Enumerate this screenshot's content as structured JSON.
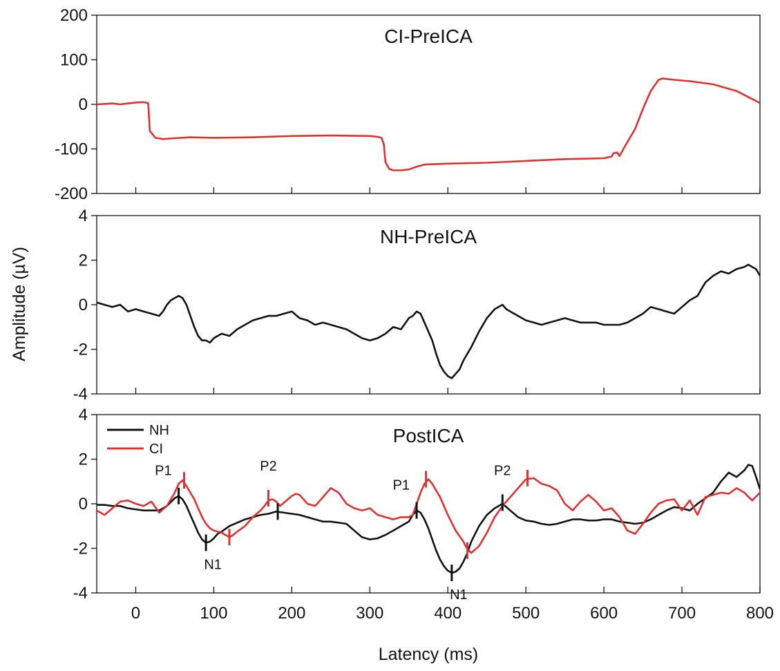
{
  "chart_data": {
    "type": "line",
    "xlabel": "Latency (ms)",
    "ylabel": "Amplitude (µV)",
    "x_ticks": [
      "0",
      "100",
      "200",
      "300",
      "400",
      "500",
      "600",
      "700",
      "800"
    ],
    "xlim": [
      -50,
      800
    ],
    "colors": {
      "NH": "#111111",
      "CI": "#e03030"
    },
    "panels": [
      {
        "title": "CI-PreICA",
        "ylim": [
          -200,
          200
        ],
        "y_ticks": [
          "200",
          "100",
          "0",
          "-100",
          "-200"
        ],
        "series": [
          {
            "color_key": "CI",
            "x": [
              -50,
              -40,
              -30,
              -20,
              -10,
              0,
              10,
              16,
              18,
              22,
              25,
              35,
              50,
              70,
              100,
              150,
              200,
              250,
              300,
              310,
              315,
              318,
              320,
              325,
              330,
              340,
              350,
              360,
              370,
              400,
              450,
              500,
              550,
              600,
              610,
              612,
              617,
              620,
              625,
              630,
              640,
              650,
              660,
              670,
              675,
              690,
              710,
              740,
              770,
              800
            ],
            "y": [
              0,
              1,
              2,
              0,
              2,
              4,
              5,
              3,
              -60,
              -68,
              -75,
              -78,
              -76,
              -74,
              -75,
              -74,
              -71,
              -70,
              -71,
              -73,
              -75,
              -90,
              -130,
              -145,
              -148,
              -148,
              -146,
              -140,
              -135,
              -133,
              -131,
              -127,
              -123,
              -121,
              -117,
              -110,
              -108,
              -116,
              -100,
              -85,
              -55,
              -10,
              30,
              55,
              58,
              55,
              52,
              45,
              30,
              3
            ]
          }
        ]
      },
      {
        "title": "NH-PreICA",
        "ylim": [
          -4,
          4
        ],
        "y_ticks": [
          "4",
          "2",
          "0",
          "-2",
          "-4"
        ],
        "series": [
          {
            "color_key": "NH",
            "x": [
              -50,
              -40,
              -30,
              -20,
              -10,
              0,
              10,
              20,
              30,
              35,
              40,
              45,
              50,
              55,
              60,
              65,
              70,
              75,
              80,
              85,
              90,
              95,
              100,
              110,
              120,
              130,
              140,
              150,
              160,
              170,
              180,
              190,
              200,
              210,
              220,
              230,
              240,
              250,
              260,
              270,
              280,
              290,
              300,
              310,
              320,
              330,
              340,
              350,
              355,
              360,
              365,
              370,
              375,
              380,
              385,
              390,
              395,
              400,
              405,
              410,
              415,
              420,
              430,
              440,
              450,
              460,
              470,
              475,
              480,
              490,
              500,
              510,
              520,
              530,
              540,
              550,
              560,
              570,
              580,
              590,
              600,
              610,
              620,
              630,
              640,
              650,
              660,
              670,
              680,
              690,
              700,
              710,
              720,
              730,
              740,
              750,
              760,
              770,
              780,
              785,
              790,
              795,
              800
            ],
            "y": [
              0.1,
              0,
              -0.1,
              0,
              -0.3,
              -0.2,
              -0.3,
              -0.4,
              -0.5,
              -0.3,
              0,
              0.2,
              0.3,
              0.4,
              0.3,
              0,
              -0.5,
              -1,
              -1.4,
              -1.6,
              -1.6,
              -1.7,
              -1.5,
              -1.3,
              -1.4,
              -1.1,
              -0.9,
              -0.7,
              -0.6,
              -0.5,
              -0.5,
              -0.4,
              -0.3,
              -0.6,
              -0.7,
              -0.9,
              -0.8,
              -0.9,
              -1,
              -1.1,
              -1.3,
              -1.5,
              -1.6,
              -1.5,
              -1.3,
              -1,
              -1.1,
              -0.6,
              -0.5,
              -0.3,
              -0.4,
              -0.8,
              -1.2,
              -1.6,
              -2.2,
              -2.7,
              -3,
              -3.2,
              -3.3,
              -3.1,
              -2.9,
              -2.5,
              -1.9,
              -1.2,
              -0.6,
              -0.2,
              0,
              -0.2,
              -0.3,
              -0.5,
              -0.7,
              -0.8,
              -0.9,
              -0.8,
              -0.7,
              -0.6,
              -0.7,
              -0.8,
              -0.8,
              -0.8,
              -0.9,
              -0.9,
              -0.9,
              -0.8,
              -0.6,
              -0.4,
              -0.1,
              -0.2,
              -0.3,
              -0.4,
              -0.1,
              0.2,
              0.4,
              1,
              1.3,
              1.5,
              1.4,
              1.6,
              1.7,
              1.8,
              1.7,
              1.6,
              1.3
            ]
          }
        ]
      },
      {
        "title": "PostICA",
        "ylim": [
          -4,
          4
        ],
        "y_ticks": [
          "4",
          "2",
          "0",
          "-2",
          "-4"
        ],
        "legend": {
          "position": "top-left",
          "entries": [
            {
              "name": "NH",
              "color_key": "NH"
            },
            {
              "name": "CI",
              "color_key": "CI"
            }
          ]
        },
        "series": [
          {
            "name": "NH",
            "color_key": "NH",
            "x": [
              -50,
              -40,
              -30,
              -20,
              -10,
              0,
              10,
              20,
              30,
              40,
              50,
              55,
              60,
              65,
              70,
              75,
              80,
              85,
              90,
              95,
              100,
              105,
              110,
              120,
              130,
              140,
              150,
              160,
              170,
              180,
              190,
              200,
              210,
              220,
              230,
              240,
              250,
              260,
              270,
              280,
              290,
              300,
              310,
              320,
              330,
              340,
              350,
              355,
              360,
              365,
              370,
              375,
              380,
              385,
              390,
              395,
              400,
              405,
              410,
              415,
              420,
              425,
              430,
              440,
              450,
              460,
              470,
              480,
              490,
              500,
              510,
              520,
              530,
              540,
              550,
              560,
              570,
              580,
              590,
              600,
              610,
              620,
              630,
              640,
              650,
              660,
              670,
              680,
              690,
              700,
              710,
              720,
              730,
              740,
              750,
              760,
              770,
              780,
              785,
              790,
              795,
              800
            ],
            "y": [
              -0.05,
              -0.05,
              -0.1,
              -0.1,
              -0.2,
              -0.25,
              -0.3,
              -0.3,
              -0.3,
              -0.1,
              0.25,
              0.35,
              0.2,
              -0.1,
              -0.5,
              -0.9,
              -1.3,
              -1.6,
              -1.75,
              -1.7,
              -1.55,
              -1.35,
              -1.25,
              -1,
              -0.85,
              -0.7,
              -0.6,
              -0.5,
              -0.45,
              -0.35,
              -0.4,
              -0.45,
              -0.5,
              -0.6,
              -0.7,
              -0.8,
              -0.8,
              -0.85,
              -0.9,
              -1.2,
              -1.5,
              -1.6,
              -1.55,
              -1.4,
              -1.2,
              -1,
              -0.8,
              -0.5,
              -0.3,
              -0.4,
              -0.7,
              -1.1,
              -1.6,
              -2.1,
              -2.5,
              -2.8,
              -3,
              -3.1,
              -3.05,
              -2.9,
              -2.6,
              -2.2,
              -1.7,
              -1,
              -0.5,
              -0.2,
              0,
              -0.3,
              -0.6,
              -0.75,
              -0.8,
              -0.9,
              -0.95,
              -0.9,
              -0.8,
              -0.7,
              -0.7,
              -0.75,
              -0.75,
              -0.7,
              -0.7,
              -0.8,
              -0.85,
              -0.9,
              -0.85,
              -0.7,
              -0.5,
              -0.3,
              -0.15,
              -0.2,
              -0.3,
              0,
              0.25,
              0.5,
              1,
              1.4,
              1.2,
              1.5,
              1.75,
              1.7,
              1.2,
              0.65
            ]
          },
          {
            "name": "CI",
            "color_key": "CI",
            "x": [
              -50,
              -40,
              -30,
              -20,
              -10,
              0,
              10,
              20,
              30,
              40,
              50,
              55,
              60,
              65,
              70,
              75,
              80,
              85,
              90,
              95,
              100,
              105,
              110,
              115,
              120,
              125,
              130,
              140,
              150,
              160,
              165,
              170,
              175,
              180,
              185,
              190,
              200,
              205,
              210,
              215,
              220,
              230,
              240,
              250,
              260,
              270,
              280,
              290,
              300,
              310,
              320,
              330,
              340,
              350,
              355,
              360,
              365,
              370,
              375,
              380,
              390,
              400,
              410,
              420,
              425,
              430,
              440,
              450,
              460,
              470,
              480,
              490,
              500,
              510,
              520,
              530,
              540,
              550,
              560,
              570,
              580,
              590,
              600,
              610,
              620,
              630,
              640,
              650,
              660,
              670,
              680,
              690,
              700,
              710,
              720,
              730,
              740,
              750,
              760,
              770,
              780,
              790,
              800
            ],
            "y": [
              -0.3,
              -0.5,
              -0.2,
              0.1,
              0.15,
              0,
              -0.1,
              0.1,
              -0.4,
              -0.1,
              0.5,
              0.9,
              1.05,
              0.8,
              0.5,
              0.2,
              -0.2,
              -0.6,
              -0.9,
              -1.1,
              -1.2,
              -1.25,
              -1.3,
              -1.4,
              -1.5,
              -1.4,
              -1.25,
              -1,
              -0.6,
              -0.3,
              -0.1,
              0.15,
              0.2,
              0.1,
              -0.1,
              0.05,
              0.35,
              0.45,
              0.4,
              0.2,
              0,
              -0.1,
              0.3,
              0.7,
              0.5,
              0,
              -0.2,
              -0.3,
              -0.2,
              -0.5,
              -0.6,
              -0.7,
              -0.6,
              -0.6,
              -0.5,
              0,
              0.5,
              0.9,
              1.1,
              0.9,
              0.3,
              -0.5,
              -1.2,
              -1.7,
              -2.05,
              -2.2,
              -1.9,
              -1.3,
              -0.6,
              -0.1,
              0.3,
              0.7,
              1.1,
              1.15,
              0.9,
              0.8,
              0.6,
              0,
              -0.3,
              0.1,
              0.4,
              0.1,
              -0.3,
              -0.2,
              -0.6,
              -1.2,
              -1.35,
              -0.9,
              -0.4,
              0,
              0.15,
              0.2,
              -0.3,
              0.15,
              -0.5,
              0.3,
              0.4,
              0.5,
              0.45,
              0.7,
              0.5,
              0.15,
              0.5
            ]
          }
        ],
        "annotations": [
          {
            "text": "P1",
            "color_key": "NH",
            "x": 55,
            "y": 0.35
          },
          {
            "text": "",
            "color_key": "CI",
            "x": 62,
            "y": 1.05
          },
          {
            "text": "N1",
            "color_key": "NH",
            "x": 90,
            "y": -1.75
          },
          {
            "text": "",
            "color_key": "CI",
            "x": 120,
            "y": -1.5
          },
          {
            "text": "P2",
            "color_key": "CI",
            "x": 170,
            "y": 0.25
          },
          {
            "text": "",
            "color_key": "NH",
            "x": 182,
            "y": -0.35
          },
          {
            "text": "P1",
            "color_key": "NH",
            "x": 360,
            "y": -0.3
          },
          {
            "text": "",
            "color_key": "CI",
            "x": 372,
            "y": 1.1
          },
          {
            "text": "N1",
            "color_key": "NH",
            "x": 405,
            "y": -3.1
          },
          {
            "text": "",
            "color_key": "CI",
            "x": 425,
            "y": -2.1
          },
          {
            "text": "P2",
            "color_key": "NH",
            "x": 470,
            "y": 0.05
          },
          {
            "text": "",
            "color_key": "CI",
            "x": 502,
            "y": 1.15
          }
        ]
      }
    ]
  }
}
